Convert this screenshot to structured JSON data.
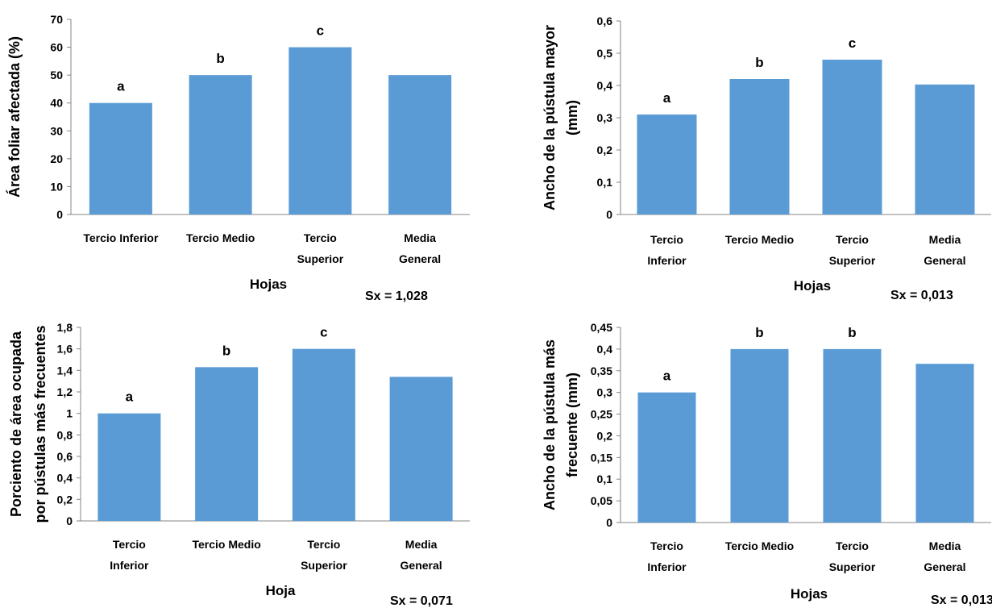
{
  "chart_data": [
    {
      "type": "bar",
      "categories": [
        [
          "Tercio Inferior"
        ],
        [
          "Tercio Medio"
        ],
        [
          "Tercio",
          "Superior"
        ],
        [
          "Media",
          "General"
        ]
      ],
      "values": [
        40,
        50,
        60,
        50
      ],
      "bar_labels": [
        "a",
        "b",
        "c",
        ""
      ],
      "ylabel": [
        "Área foliar afectada (%)"
      ],
      "xlabel": "Hojas",
      "ylim": [
        0,
        70
      ],
      "yticks": [
        0,
        10,
        20,
        30,
        40,
        50,
        60,
        70
      ],
      "ytick_labels": [
        "0",
        "10",
        "20",
        "30",
        "40",
        "50",
        "60",
        "70"
      ],
      "note": "Sx = 1,028",
      "color": "#5b9bd5"
    },
    {
      "type": "bar",
      "categories": [
        [
          "Tercio",
          "Inferior"
        ],
        [
          "Tercio Medio"
        ],
        [
          "Tercio",
          "Superior"
        ],
        [
          "Media",
          "General"
        ]
      ],
      "values": [
        0.31,
        0.42,
        0.48,
        0.403
      ],
      "bar_labels": [
        "a",
        "b",
        "c",
        ""
      ],
      "ylabel": [
        "Ancho de la pústula mayor",
        "(mm)"
      ],
      "xlabel": "Hojas",
      "ylim": [
        0,
        0.6
      ],
      "yticks": [
        0,
        0.1,
        0.2,
        0.3,
        0.4,
        0.5,
        0.6
      ],
      "ytick_labels": [
        "0",
        "0,1",
        "0,2",
        "0,3",
        "0,4",
        "0,5",
        "0,6"
      ],
      "note": "Sx = 0,013",
      "color": "#5b9bd5"
    },
    {
      "type": "bar",
      "categories": [
        [
          "Tercio",
          "Inferior"
        ],
        [
          "Tercio Medio"
        ],
        [
          "Tercio",
          "Superior"
        ],
        [
          "Media",
          "General"
        ]
      ],
      "values": [
        1.0,
        1.43,
        1.6,
        1.34
      ],
      "bar_labels": [
        "a",
        "b",
        "c",
        ""
      ],
      "ylabel": [
        "Porciento de área ocupada",
        "por pústulas más frecuentes"
      ],
      "xlabel": "Hoja",
      "ylim": [
        0,
        1.8
      ],
      "yticks": [
        0,
        0.2,
        0.4,
        0.6,
        0.8,
        1,
        1.2,
        1.4,
        1.6,
        1.8
      ],
      "ytick_labels": [
        "0",
        "0,2",
        "0,4",
        "0,6",
        "0,8",
        "1",
        "1,2",
        "1,4",
        "1,6",
        "1,8"
      ],
      "note": "Sx = 0,071",
      "color": "#5b9bd5"
    },
    {
      "type": "bar",
      "categories": [
        [
          "Tercio",
          "Inferior"
        ],
        [
          "Tercio Medio"
        ],
        [
          "Tercio",
          "Superior"
        ],
        [
          "Media",
          "General"
        ]
      ],
      "values": [
        0.3,
        0.4,
        0.4,
        0.366
      ],
      "bar_labels": [
        "a",
        "b",
        "b",
        ""
      ],
      "ylabel": [
        "Ancho de la pústula más",
        "frecuente (mm)"
      ],
      "xlabel": "Hojas",
      "ylim": [
        0,
        0.45
      ],
      "yticks": [
        0,
        0.05,
        0.1,
        0.15,
        0.2,
        0.25,
        0.3,
        0.35,
        0.4,
        0.45
      ],
      "ytick_labels": [
        "0",
        "0,05",
        "0,1",
        "0,15",
        "0,2",
        "0,25",
        "0,3",
        "0,35",
        "0,4",
        "0,45"
      ],
      "note": "Sx = 0,013",
      "color": "#5b9bd5"
    }
  ]
}
